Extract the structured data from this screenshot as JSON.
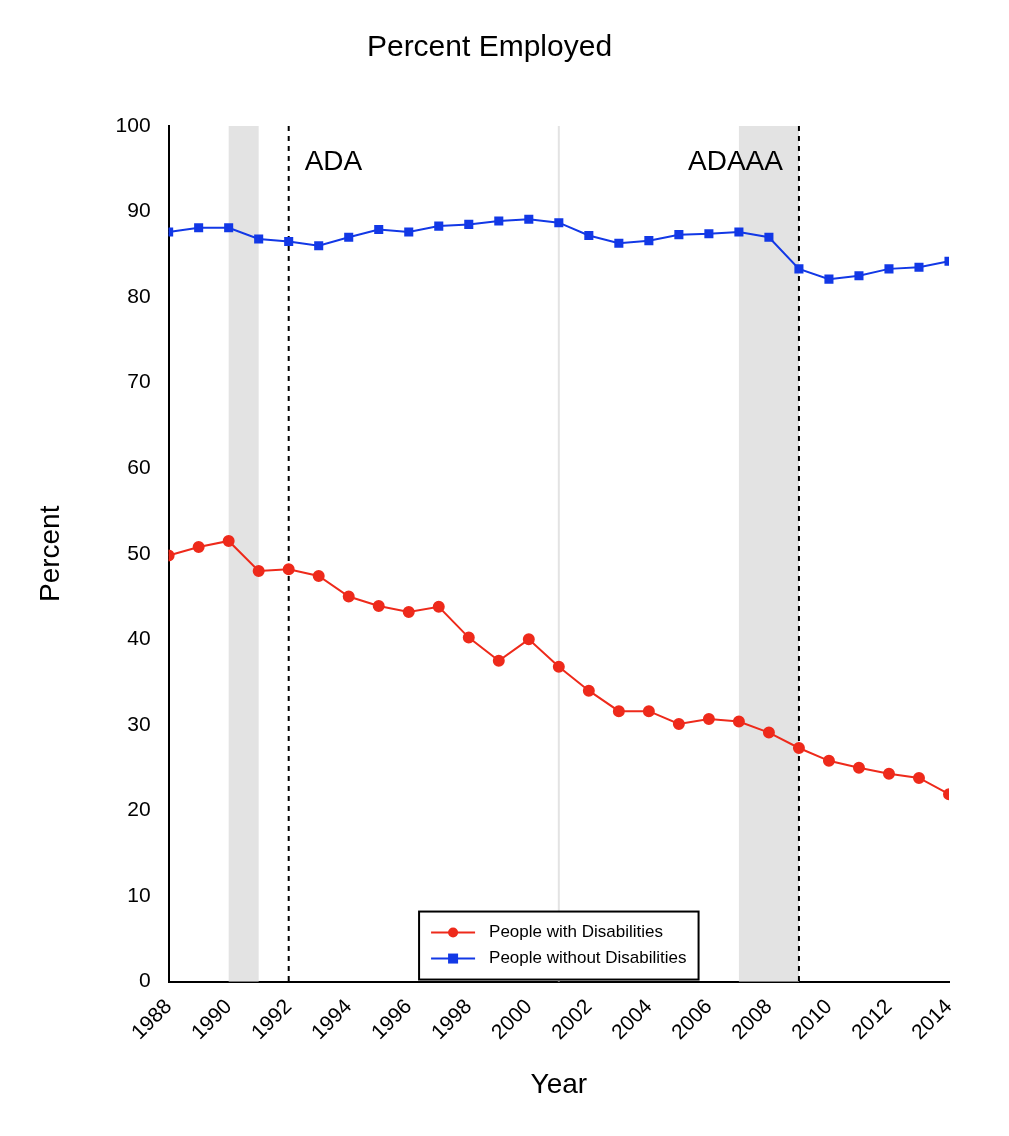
{
  "chart_data": {
    "type": "line",
    "title": "Percent Employed",
    "x_label": "Year",
    "y_label": "Percent",
    "x": [
      1988,
      1989,
      1990,
      1991,
      1992,
      1993,
      1994,
      1995,
      1996,
      1997,
      1998,
      1999,
      2000,
      2001,
      2002,
      2003,
      2004,
      2005,
      2006,
      2007,
      2008,
      2009,
      2010,
      2011,
      2012,
      2013,
      2014
    ],
    "series": [
      {
        "name": "People with Disabilities",
        "color": "#ee2a1b",
        "marker": "circle",
        "values": [
          49.8,
          50.8,
          51.5,
          48.0,
          48.2,
          47.4,
          45.0,
          43.9,
          43.2,
          43.8,
          40.2,
          37.5,
          40.0,
          36.8,
          34.0,
          31.6,
          31.6,
          30.1,
          30.7,
          30.4,
          29.1,
          27.3,
          25.8,
          25.0,
          24.3,
          23.8,
          21.9
        ]
      },
      {
        "name": "People without Disabilities",
        "color": "#1238e6",
        "marker": "square",
        "values": [
          87.6,
          88.1,
          88.1,
          86.8,
          86.5,
          86.0,
          87.0,
          87.9,
          87.6,
          88.3,
          88.5,
          88.9,
          89.1,
          88.7,
          87.2,
          86.3,
          86.6,
          87.3,
          87.4,
          87.6,
          87.0,
          83.3,
          82.1,
          82.5,
          83.3,
          83.5,
          84.2
        ]
      }
    ],
    "xlim": [
      1988,
      2014
    ],
    "xticks": [
      1988,
      1990,
      1992,
      1994,
      1996,
      1998,
      2000,
      2002,
      2004,
      2006,
      2008,
      2010,
      2012,
      2014
    ],
    "ylim": [
      0,
      100
    ],
    "yticks": [
      0,
      10,
      20,
      30,
      40,
      50,
      60,
      70,
      80,
      90,
      100
    ],
    "grid": false,
    "legend": "bottom",
    "shaded_regions": [
      [
        1990,
        1991
      ],
      [
        2007,
        2009
      ]
    ],
    "vlines": [
      {
        "x": 1992,
        "label": "ADA",
        "line_style": "dashed"
      },
      {
        "x": 2001,
        "line_style": "solid"
      },
      {
        "x": 2009,
        "label": "ADAAA",
        "line_style": "dashed"
      }
    ]
  }
}
